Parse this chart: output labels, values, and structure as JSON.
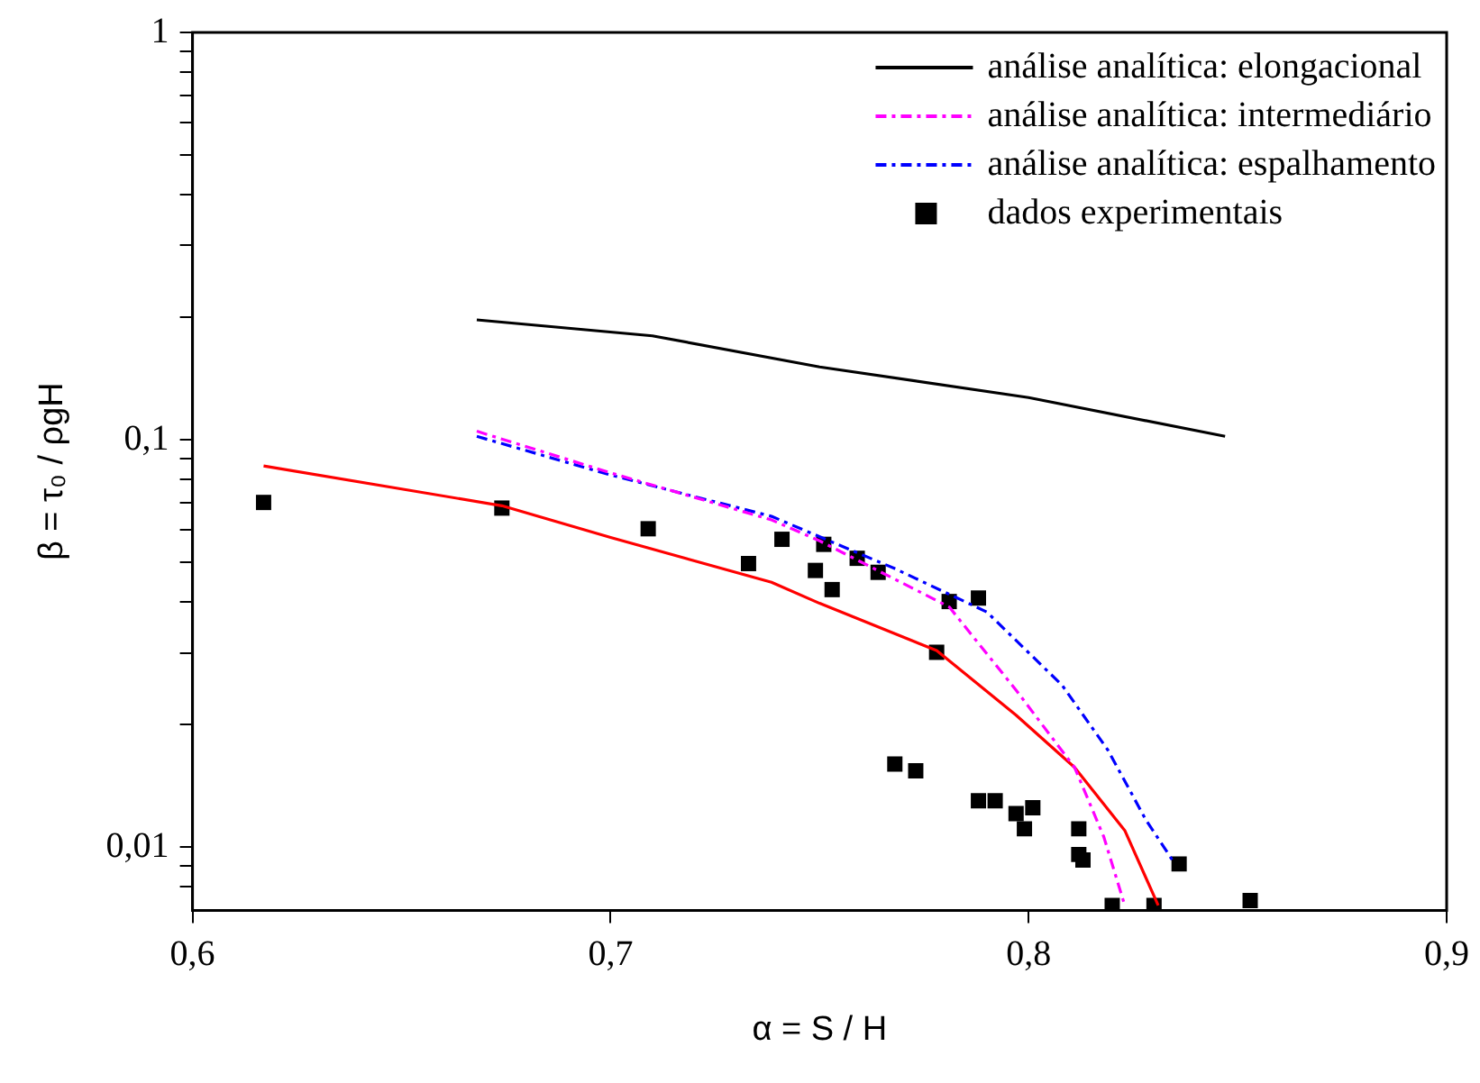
{
  "chart_data": {
    "type": "line",
    "xlabel": "α = S / H",
    "ylabel": "β = τ₀ / ρgH",
    "xlim": [
      0.6,
      0.9
    ],
    "xticks": [
      {
        "value": 0.6,
        "label": "0,6"
      },
      {
        "value": 0.7,
        "label": "0,7"
      },
      {
        "value": 0.8,
        "label": "0,8"
      },
      {
        "value": 0.9,
        "label": "0,9"
      }
    ],
    "ylim": [
      0.007,
      1
    ],
    "log": "y",
    "yticks": [
      {
        "value": 0.008,
        "label": null
      },
      {
        "value": 0.009,
        "label": null
      },
      {
        "value": 0.01,
        "label": "0,01"
      },
      {
        "value": 0.02,
        "label": null
      },
      {
        "value": 0.03,
        "label": null
      },
      {
        "value": 0.04,
        "label": null
      },
      {
        "value": 0.05,
        "label": null
      },
      {
        "value": 0.06,
        "label": null
      },
      {
        "value": 0.07,
        "label": null
      },
      {
        "value": 0.08,
        "label": null
      },
      {
        "value": 0.09,
        "label": null
      },
      {
        "value": 0.1,
        "label": "0,1"
      },
      {
        "value": 0.2,
        "label": null
      },
      {
        "value": 0.3,
        "label": null
      },
      {
        "value": 0.4,
        "label": null
      },
      {
        "value": 0.5,
        "label": null
      },
      {
        "value": 0.6,
        "label": null
      },
      {
        "value": 0.7,
        "label": null
      },
      {
        "value": 0.8,
        "label": null
      },
      {
        "value": 0.9,
        "label": null
      },
      {
        "value": 1,
        "label": "1"
      }
    ],
    "grid": false,
    "legend": "top right",
    "series": [
      {
        "name": "análise analítica: elongacional",
        "color": "#000000",
        "line_style": "solid",
        "marker": "none",
        "x": [
          0.668,
          0.71,
          0.75,
          0.8,
          0.847
        ],
        "values": [
          0.197,
          0.18,
          0.151,
          0.127,
          0.102
        ]
      },
      {
        "name": "análise analítica: intermediário",
        "color": "#ff00ff",
        "line_style": "dashed",
        "marker": "none",
        "x": [
          0.668,
          0.7,
          0.7385,
          0.75,
          0.759,
          0.781,
          0.797,
          0.811,
          0.818,
          0.823
        ],
        "values": [
          0.105,
          0.083,
          0.0636,
          0.0565,
          0.0507,
          0.0389,
          0.0243,
          0.0157,
          0.0106,
          0.0072
        ]
      },
      {
        "name": "análise analítica: espalhamento",
        "color": "#0000ff",
        "line_style": "dashed",
        "marker": "none",
        "x": [
          0.668,
          0.7,
          0.7385,
          0.768,
          0.79,
          0.808,
          0.819,
          0.828,
          0.835
        ],
        "values": [
          0.102,
          0.082,
          0.0649,
          0.0483,
          0.0378,
          0.025,
          0.0173,
          0.0117,
          0.0091
        ]
      },
      {
        "name": "dados experimentais",
        "type": "scatter",
        "color": "#000000",
        "marker": "square",
        "x": [
          0.617,
          0.674,
          0.709,
          0.733,
          0.741,
          0.749,
          0.751,
          0.759,
          0.753,
          0.764,
          0.781,
          0.788,
          0.778,
          0.768,
          0.773,
          0.788,
          0.792,
          0.797,
          0.801,
          0.799,
          0.812,
          0.812,
          0.813,
          0.82,
          0.83,
          0.836,
          0.853
        ],
        "values": [
          0.0702,
          0.068,
          0.0605,
          0.0497,
          0.057,
          0.0478,
          0.0554,
          0.0512,
          0.0429,
          0.0473,
          0.0401,
          0.0409,
          0.0301,
          0.016,
          0.0154,
          0.013,
          0.013,
          0.0121,
          0.0125,
          0.0111,
          0.0111,
          0.0096,
          0.0093,
          0.0072,
          0.0072,
          0.0091,
          0.0074
        ]
      },
      {
        "color": "#ff0000",
        "line_style": "solid",
        "marker": "none",
        "x": [
          0.617,
          0.674,
          0.7,
          0.7385,
          0.75,
          0.778,
          0.797,
          0.811,
          0.823,
          0.831
        ],
        "values": [
          0.0863,
          0.0689,
          0.0576,
          0.0447,
          0.0397,
          0.0304,
          0.0211,
          0.0157,
          0.011,
          0.0072
        ]
      }
    ]
  }
}
